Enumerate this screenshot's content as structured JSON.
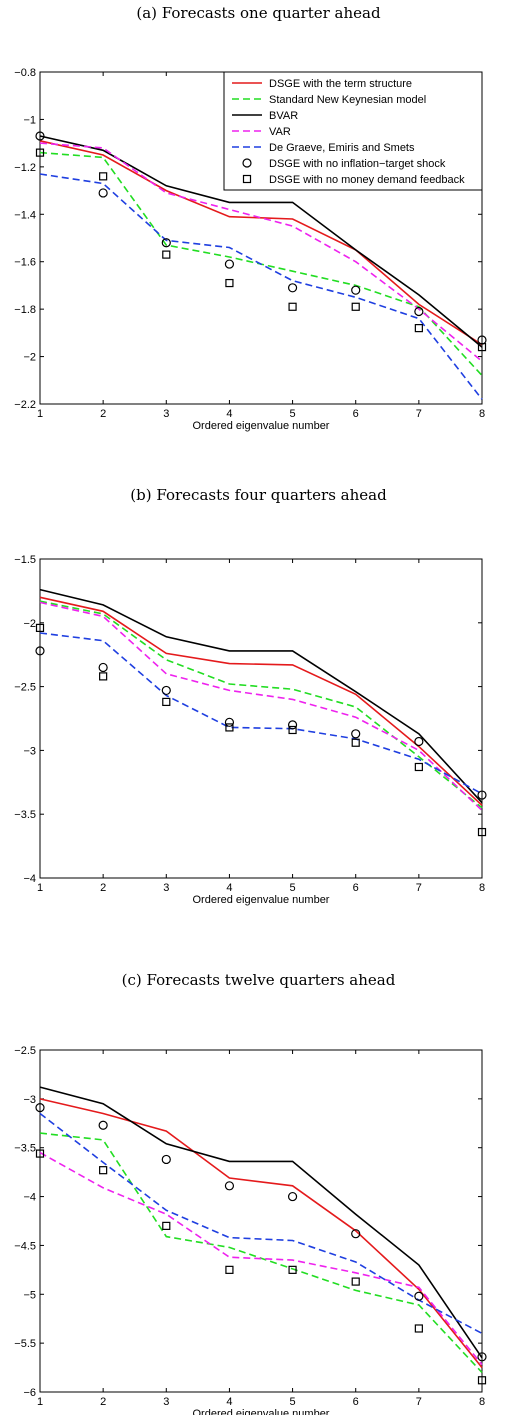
{
  "chart_data": [
    {
      "type": "line",
      "title": "(a) Forecasts one quarter ahead",
      "xlabel": "Ordered eigenvalue number",
      "ylabel": "",
      "x": [
        1,
        2,
        3,
        4,
        5,
        6,
        7,
        8
      ],
      "xlim": [
        1,
        8
      ],
      "ylim": [
        -2.2,
        -0.8
      ],
      "yticks": [
        -0.8,
        -1,
        -1.2,
        -1.4,
        -1.6,
        -1.8,
        -2,
        -2.2
      ],
      "ytick_labels": [
        "−0.8",
        "−1",
        "−1.2",
        "−1.4",
        "−1.6",
        "−1.8",
        "−2",
        "−2.2"
      ],
      "xtick_labels": [
        "1",
        "2",
        "3",
        "4",
        "5",
        "6",
        "7",
        "8"
      ],
      "grid": false,
      "legend": "top-right",
      "series": [
        {
          "name": "DSGE with the term structure",
          "style": "solid",
          "marker": "none",
          "color": "#e41a1c",
          "values": [
            -1.09,
            -1.15,
            -1.3,
            -1.41,
            -1.42,
            -1.55,
            -1.78,
            -1.95
          ]
        },
        {
          "name": "Standard New Keynesian model",
          "style": "dashed",
          "marker": "none",
          "color": "#22dd22",
          "values": [
            -1.14,
            -1.16,
            -1.53,
            -1.58,
            -1.64,
            -1.7,
            -1.79,
            -2.08
          ]
        },
        {
          "name": "BVAR",
          "style": "solid",
          "marker": "none",
          "color": "#000000",
          "values": [
            -1.07,
            -1.13,
            -1.28,
            -1.35,
            -1.35,
            -1.55,
            -1.74,
            -1.96
          ]
        },
        {
          "name": "VAR",
          "style": "dashed",
          "marker": "none",
          "color": "#ee22ee",
          "values": [
            -1.1,
            -1.12,
            -1.31,
            -1.38,
            -1.45,
            -1.6,
            -1.8,
            -2.02
          ]
        },
        {
          "name": "De Graeve, Emiris and Smets",
          "style": "dashed",
          "marker": "none",
          "color": "#1f3fe0",
          "values": [
            -1.23,
            -1.27,
            -1.51,
            -1.54,
            -1.68,
            -1.75,
            -1.84,
            -2.18
          ]
        },
        {
          "name": "DSGE with no inflation−target shock",
          "style": "none",
          "marker": "circle",
          "color": "#000000",
          "values": [
            -1.07,
            -1.31,
            -1.52,
            -1.61,
            -1.71,
            -1.72,
            -1.81,
            -1.93
          ]
        },
        {
          "name": "DSGE with no money demand feedback",
          "style": "none",
          "marker": "square",
          "color": "#000000",
          "values": [
            -1.14,
            -1.24,
            -1.57,
            -1.69,
            -1.79,
            -1.79,
            -1.88,
            -1.96
          ]
        }
      ]
    },
    {
      "type": "line",
      "title": "(b) Forecasts four quarters ahead",
      "xlabel": "Ordered eigenvalue number",
      "ylabel": "",
      "x": [
        1,
        2,
        3,
        4,
        5,
        6,
        7,
        8
      ],
      "xlim": [
        1,
        8
      ],
      "ylim": [
        -4,
        -1.5
      ],
      "yticks": [
        -1.5,
        -2,
        -2.5,
        -3,
        -3.5,
        -4
      ],
      "ytick_labels": [
        "−1.5",
        "−2",
        "−2.5",
        "−3",
        "−3.5",
        "−4"
      ],
      "xtick_labels": [
        "1",
        "2",
        "3",
        "4",
        "5",
        "6",
        "7",
        "8"
      ],
      "grid": false,
      "legend": "none",
      "series": [
        {
          "name": "DSGE with the term structure",
          "style": "solid",
          "marker": "none",
          "color": "#e41a1c",
          "values": [
            -1.8,
            -1.91,
            -2.24,
            -2.32,
            -2.33,
            -2.56,
            -2.97,
            -3.43
          ]
        },
        {
          "name": "Standard New Keynesian model",
          "style": "dashed",
          "marker": "none",
          "color": "#22dd22",
          "values": [
            -1.83,
            -1.93,
            -2.29,
            -2.48,
            -2.52,
            -2.66,
            -3.05,
            -3.45
          ]
        },
        {
          "name": "BVAR",
          "style": "solid",
          "marker": "none",
          "color": "#000000",
          "values": [
            -1.74,
            -1.86,
            -2.11,
            -2.22,
            -2.22,
            -2.54,
            -2.87,
            -3.41
          ]
        },
        {
          "name": "VAR",
          "style": "dashed",
          "marker": "none",
          "color": "#ee22ee",
          "values": [
            -1.84,
            -1.95,
            -2.4,
            -2.53,
            -2.6,
            -2.74,
            -3.0,
            -3.47
          ]
        },
        {
          "name": "De Graeve, Emiris and Smets",
          "style": "dashed",
          "marker": "none",
          "color": "#1f3fe0",
          "values": [
            -2.08,
            -2.14,
            -2.57,
            -2.82,
            -2.83,
            -2.91,
            -3.07,
            -3.34
          ]
        },
        {
          "name": "DSGE with no inflation−target shock",
          "style": "none",
          "marker": "circle",
          "color": "#000000",
          "values": [
            -2.22,
            -2.35,
            -2.53,
            -2.78,
            -2.8,
            -2.87,
            -2.93,
            -3.35
          ]
        },
        {
          "name": "DSGE with no money demand feedback",
          "style": "none",
          "marker": "square",
          "color": "#000000",
          "values": [
            -2.04,
            -2.42,
            -2.62,
            -2.82,
            -2.84,
            -2.94,
            -3.13,
            -3.64
          ]
        }
      ]
    },
    {
      "type": "line",
      "title": "(c) Forecasts twelve quarters ahead",
      "xlabel": "Ordered eigenvalue number",
      "ylabel": "",
      "x": [
        1,
        2,
        3,
        4,
        5,
        6,
        7,
        8
      ],
      "xlim": [
        1,
        8
      ],
      "ylim": [
        -6,
        -2.5
      ],
      "yticks": [
        -2.5,
        -3,
        -3.5,
        -4,
        -4.5,
        -5,
        -5.5,
        -6
      ],
      "ytick_labels": [
        "−2.5",
        "−3",
        "−3.5",
        "−4",
        "−4.5",
        "−5",
        "−5.5",
        "−6"
      ],
      "xtick_labels": [
        "1",
        "2",
        "3",
        "4",
        "5",
        "6",
        "7",
        "8"
      ],
      "grid": false,
      "legend": "none",
      "series": [
        {
          "name": "DSGE with the term structure",
          "style": "solid",
          "marker": "none",
          "color": "#e41a1c",
          "values": [
            -3.0,
            -3.15,
            -3.33,
            -3.81,
            -3.89,
            -4.35,
            -4.95,
            -5.75
          ]
        },
        {
          "name": "Standard New Keynesian model",
          "style": "dashed",
          "marker": "none",
          "color": "#22dd22",
          "values": [
            -3.35,
            -3.42,
            -4.41,
            -4.52,
            -4.74,
            -4.96,
            -5.11,
            -5.8
          ]
        },
        {
          "name": "BVAR",
          "style": "solid",
          "marker": "none",
          "color": "#000000",
          "values": [
            -2.88,
            -3.05,
            -3.46,
            -3.64,
            -3.64,
            -4.18,
            -4.7,
            -5.65
          ]
        },
        {
          "name": "VAR",
          "style": "dashed",
          "marker": "none",
          "color": "#ee22ee",
          "values": [
            -3.55,
            -3.91,
            -4.18,
            -4.62,
            -4.65,
            -4.78,
            -4.93,
            -5.72
          ]
        },
        {
          "name": "De Graeve, Emiris and Smets",
          "style": "dashed",
          "marker": "none",
          "color": "#1f3fe0",
          "values": [
            -3.15,
            -3.65,
            -4.14,
            -4.42,
            -4.45,
            -4.67,
            -5.06,
            -5.4
          ]
        },
        {
          "name": "DSGE with no inflation−target shock",
          "style": "none",
          "marker": "circle",
          "color": "#000000",
          "values": [
            -3.09,
            -3.27,
            -3.62,
            -3.89,
            -4.0,
            -4.38,
            -5.02,
            -5.64
          ]
        },
        {
          "name": "DSGE with no money demand feedback",
          "style": "none",
          "marker": "square",
          "color": "#000000",
          "values": [
            -3.56,
            -3.73,
            -4.3,
            -4.75,
            -4.75,
            -4.87,
            -5.35,
            -5.88
          ]
        }
      ]
    }
  ]
}
